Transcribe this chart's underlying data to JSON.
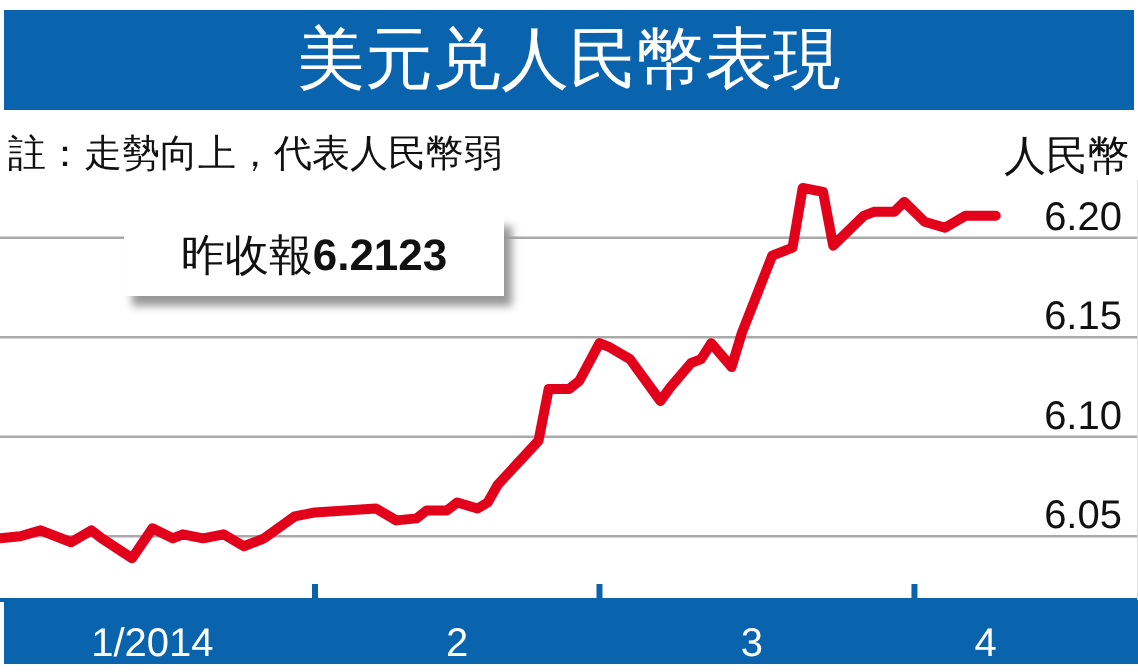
{
  "chart_data": {
    "type": "line",
    "title": "美元兑人民幣表現",
    "ylabel": "人民幣",
    "annotations": [
      "註：走勢向上，代表人民幣弱",
      "昨收報6.2123"
    ],
    "x": [
      "2014-01-01",
      "2014-01-03",
      "2014-01-05",
      "2014-01-08",
      "2014-01-10",
      "2014-01-11",
      "2014-01-14",
      "2014-01-16",
      "2014-01-18",
      "2014-01-19",
      "2014-01-21",
      "2014-01-23",
      "2014-01-25",
      "2014-01-27",
      "2014-01-30",
      "2014-02-01",
      "2014-02-07",
      "2014-02-09",
      "2014-02-11",
      "2014-02-12",
      "2014-02-14",
      "2014-02-15",
      "2014-02-17",
      "2014-02-18",
      "2014-02-19",
      "2014-02-23",
      "2014-02-24",
      "2014-02-26",
      "2014-02-27",
      "2014-03-01",
      "2014-03-02",
      "2014-03-04",
      "2014-03-07",
      "2014-03-08",
      "2014-03-10",
      "2014-03-11",
      "2014-03-12",
      "2014-03-14",
      "2014-03-15",
      "2014-03-17",
      "2014-03-18",
      "2014-03-20",
      "2014-03-21",
      "2014-03-23",
      "2014-03-24",
      "2014-03-27",
      "2014-03-28",
      "2014-03-30",
      "2014-03-31",
      "2014-04-02",
      "2014-04-04",
      "2014-04-06",
      "2014-04-09"
    ],
    "series": [
      {
        "color": "#e3001b",
        "values": [
          6.049,
          6.05,
          6.053,
          6.047,
          6.053,
          6.049,
          6.039,
          6.054,
          6.049,
          6.051,
          6.049,
          6.051,
          6.045,
          6.049,
          6.06,
          6.062,
          6.064,
          6.058,
          6.059,
          6.063,
          6.063,
          6.067,
          6.064,
          6.067,
          6.076,
          6.098,
          6.124,
          6.124,
          6.128,
          6.147,
          6.145,
          6.139,
          6.118,
          6.125,
          6.137,
          6.139,
          6.147,
          6.135,
          6.152,
          6.178,
          6.191,
          6.195,
          6.225,
          6.223,
          6.196,
          6.211,
          6.213,
          6.213,
          6.218,
          6.208,
          6.205,
          6.211,
          6.211
        ]
      }
    ],
    "xlim": [
      "2014-01-01",
      "2014-04-23"
    ],
    "xticks": [
      {
        "value": "2014-01-16",
        "label": "1/2014"
      },
      {
        "value": "2014-02-01",
        "label": null
      },
      {
        "value": "2014-02-15",
        "label": "2"
      },
      {
        "value": "2014-03-01",
        "label": null
      },
      {
        "value": "2014-03-16",
        "label": "3"
      },
      {
        "value": "2014-04-01",
        "label": null
      },
      {
        "value": "2014-04-08",
        "label": "4"
      }
    ],
    "ylim": [
      6.018,
      6.229
    ],
    "yticks": [
      6.05,
      {
        "value": 6.1,
        "label": "6.10"
      },
      6.15,
      {
        "value": 6.2,
        "label": "6.20"
      }
    ],
    "grid": "y",
    "marker": "none",
    "line_style": "solid"
  }
}
